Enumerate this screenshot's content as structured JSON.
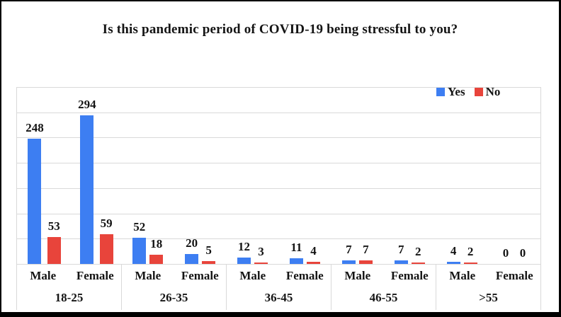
{
  "window": {
    "background_color": "#ffffff",
    "border_color": "#000000"
  },
  "chart_data": {
    "type": "bar",
    "title": "Is this pandemic period of COVID-19 being stressful to you?",
    "legend": {
      "position": "top-right",
      "entries": [
        {
          "label": "Yes",
          "color": "#3D7EF2"
        },
        {
          "label": "No",
          "color": "#E8443B"
        }
      ]
    },
    "ylim": [
      0,
      350
    ],
    "gridline_step": 50,
    "grid": true,
    "gridline_color": "#d9d9d9",
    "y_axis_tick_labels_visible": false,
    "x_axis_tier1_labels": [
      "Male",
      "Female",
      "Male",
      "Female",
      "Male",
      "Female",
      "Male",
      "Female",
      "Male",
      "Female"
    ],
    "x_axis_tier2_labels": [
      "18-25",
      "26-35",
      "36-45",
      "46-55",
      ">55"
    ],
    "categories": [
      {
        "age_group": "18-25",
        "genders": [
          {
            "label": "Male",
            "yes": 248,
            "no": 53
          },
          {
            "label": "Female",
            "yes": 294,
            "no": 59
          }
        ]
      },
      {
        "age_group": "26-35",
        "genders": [
          {
            "label": "Male",
            "yes": 52,
            "no": 18
          },
          {
            "label": "Female",
            "yes": 20,
            "no": 5
          }
        ]
      },
      {
        "age_group": "36-45",
        "genders": [
          {
            "label": "Male",
            "yes": 12,
            "no": 3
          },
          {
            "label": "Female",
            "yes": 11,
            "no": 4
          }
        ]
      },
      {
        "age_group": "46-55",
        "genders": [
          {
            "label": "Male",
            "yes": 7,
            "no": 7
          },
          {
            "label": "Female",
            "yes": 7,
            "no": 2
          }
        ]
      },
      {
        "age_group": ">55",
        "genders": [
          {
            "label": "Male",
            "yes": 4,
            "no": 2
          },
          {
            "label": "Female",
            "yes": 0,
            "no": 0
          }
        ]
      }
    ],
    "series": [
      {
        "name": "Yes",
        "color": "#3D7EF2",
        "values": [
          248,
          294,
          52,
          20,
          12,
          11,
          7,
          7,
          4,
          0
        ]
      },
      {
        "name": "No",
        "color": "#E8443B",
        "values": [
          53,
          59,
          18,
          5,
          3,
          4,
          7,
          2,
          2,
          0
        ]
      }
    ]
  }
}
